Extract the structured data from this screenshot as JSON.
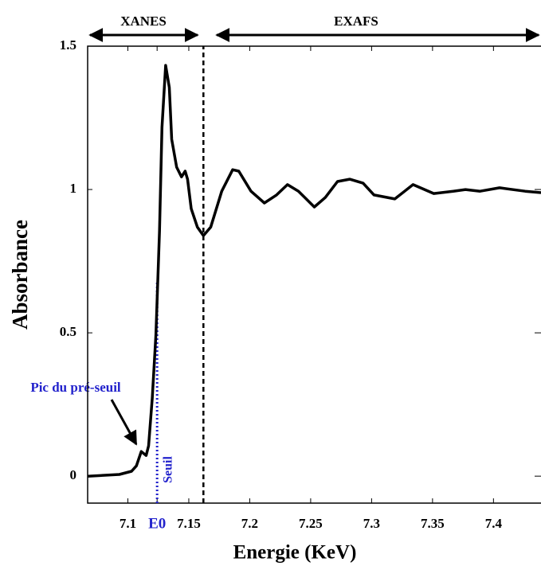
{
  "chart_data": {
    "type": "line",
    "x_label": "Energie (KeV)",
    "y_label": "Absorbance",
    "annotations": [
      "XANES",
      "EXAFS",
      "Pic du pré-seuil",
      "Seuil"
    ],
    "x": [
      7.067,
      7.093,
      7.103,
      7.107,
      7.111,
      7.115,
      7.117,
      7.12,
      7.123,
      7.126,
      7.128,
      7.131,
      7.134,
      7.136,
      7.14,
      7.144,
      7.147,
      7.149,
      7.152,
      7.157,
      7.162,
      7.168,
      7.177,
      7.186,
      7.191,
      7.201,
      7.212,
      7.222,
      7.231,
      7.24,
      7.253,
      7.262,
      7.272,
      7.282,
      7.293,
      7.302,
      7.319,
      7.334,
      7.351,
      7.367,
      7.377,
      7.389,
      7.405,
      7.426,
      7.439
    ],
    "series": [
      {
        "color": "#000000",
        "values": [
          0,
          0.006,
          0.017,
          0.036,
          0.086,
          0.072,
          0.106,
          0.272,
          0.494,
          0.856,
          1.217,
          1.433,
          1.356,
          1.175,
          1.078,
          1.044,
          1.064,
          1.036,
          0.933,
          0.869,
          0.839,
          0.869,
          0.994,
          1.069,
          1.064,
          0.994,
          0.953,
          0.981,
          1.017,
          0.994,
          0.939,
          0.972,
          1.028,
          1.036,
          1.022,
          0.981,
          0.967,
          1.017,
          0.986,
          0.994,
          1.0,
          0.994,
          1.006,
          0.994,
          0.989
        ]
      }
    ],
    "vlines": [
      {
        "x": 7.162,
        "color": "#000000",
        "style": "dashed"
      },
      {
        "x": 7.124,
        "color": "#2222cc",
        "style": "dotted",
        "ymax": 0.675
      }
    ],
    "xlim": [
      7.067,
      7.439
    ],
    "ylim": [
      -0.094,
      1.5
    ],
    "xticks": [
      7.1,
      {
        "value": 7.124,
        "label": "E0"
      },
      7.15,
      7.2,
      7.25,
      7.3,
      7.35,
      7.4
    ],
    "yticks": [
      0,
      0.5,
      1,
      1.5
    ],
    "grid": false
  }
}
